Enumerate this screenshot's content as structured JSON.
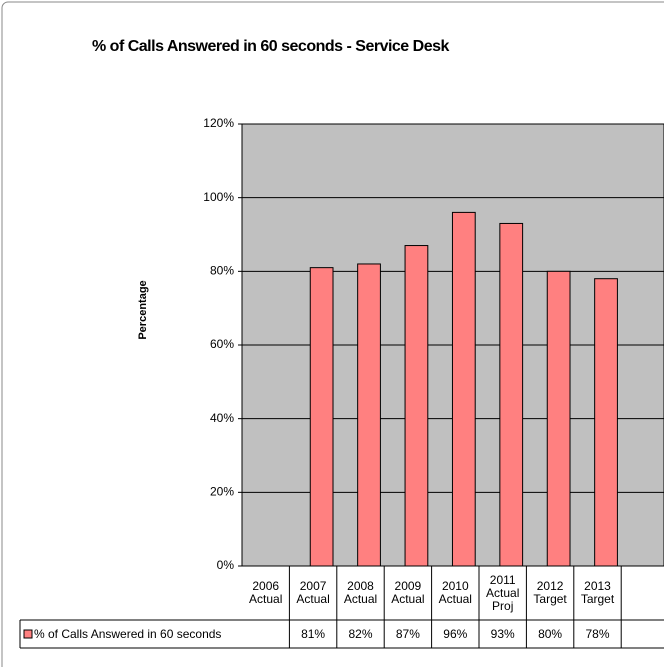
{
  "chart_data": {
    "type": "bar",
    "title": "% of Calls Answered in 60 seconds - Service Desk",
    "y_label": "Percentage",
    "categories": [
      "2006 Actual",
      "2007 Actual",
      "2008 Actual",
      "2009 Actual",
      "2010 Actual",
      "2011 Actual Proj",
      "2012 Target",
      "2013 Target"
    ],
    "series": [
      {
        "name": "% of Calls Answered in 60 seconds",
        "color": "#ff8080",
        "values": [
          null,
          81,
          82,
          87,
          96,
          93,
          80,
          78
        ],
        "value_labels": [
          null,
          "81%",
          "82%",
          "87%",
          "96%",
          "93%",
          "80%",
          "78%"
        ]
      }
    ],
    "ylim": [
      0,
      120
    ],
    "yticks": [
      {
        "value": 0,
        "label": "0%"
      },
      {
        "value": 20,
        "label": "20%"
      },
      {
        "value": 40,
        "label": "40%"
      },
      {
        "value": 60,
        "label": "60%"
      },
      {
        "value": 80,
        "label": "80%"
      },
      {
        "value": 100,
        "label": "100%"
      },
      {
        "value": 120,
        "label": "120%"
      }
    ],
    "grid": true,
    "plot_background": "#c0c0c0"
  }
}
